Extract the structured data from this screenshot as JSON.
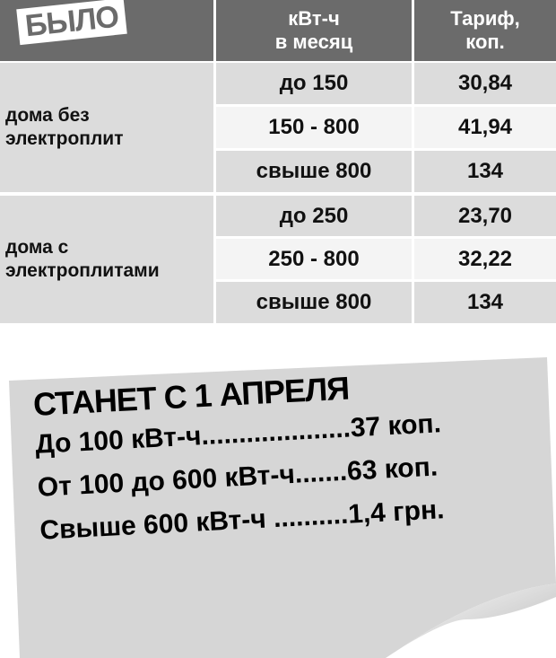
{
  "before": {
    "label": "БЫЛО",
    "headers": {
      "kwh": "кВт-ч\nв месяц",
      "kwh_line1": "кВт-ч",
      "kwh_line2": "в месяц",
      "tariff_line1": "Тариф,",
      "tariff_line2": "коп."
    },
    "groups": [
      {
        "category": "дома без электроплит",
        "category_line1": "дома без",
        "category_line2": "электроплит",
        "rows": [
          {
            "range": "до 150",
            "tariff": "30,84"
          },
          {
            "range": "150 - 800",
            "tariff": "41,94"
          },
          {
            "range": "свыше 800",
            "tariff": "134"
          }
        ]
      },
      {
        "category": "дома с электроплитами",
        "category_line1": "дома с",
        "category_line2": "электроплитами",
        "rows": [
          {
            "range": "до 250",
            "tariff": "23,70"
          },
          {
            "range": "250 - 800",
            "tariff": "32,22"
          },
          {
            "range": "свыше 800",
            "tariff": "134"
          }
        ]
      }
    ]
  },
  "after": {
    "title": "СТАНЕТ С 1 АПРЕЛЯ",
    "lines": [
      {
        "label": "До 100 кВт-ч",
        "dots": "....................",
        "price": "37 коп."
      },
      {
        "label": "От 100 до 600 кВт-ч",
        "dots": ".......",
        "price": "63 коп."
      },
      {
        "label": "Свыше 600 кВт-ч",
        "dots": " ..........",
        "price": "1,4 грн."
      }
    ]
  },
  "colors": {
    "header": "#6b6b6b",
    "row_gray": "#dcdcdc",
    "paper": "#d6d6d6"
  }
}
